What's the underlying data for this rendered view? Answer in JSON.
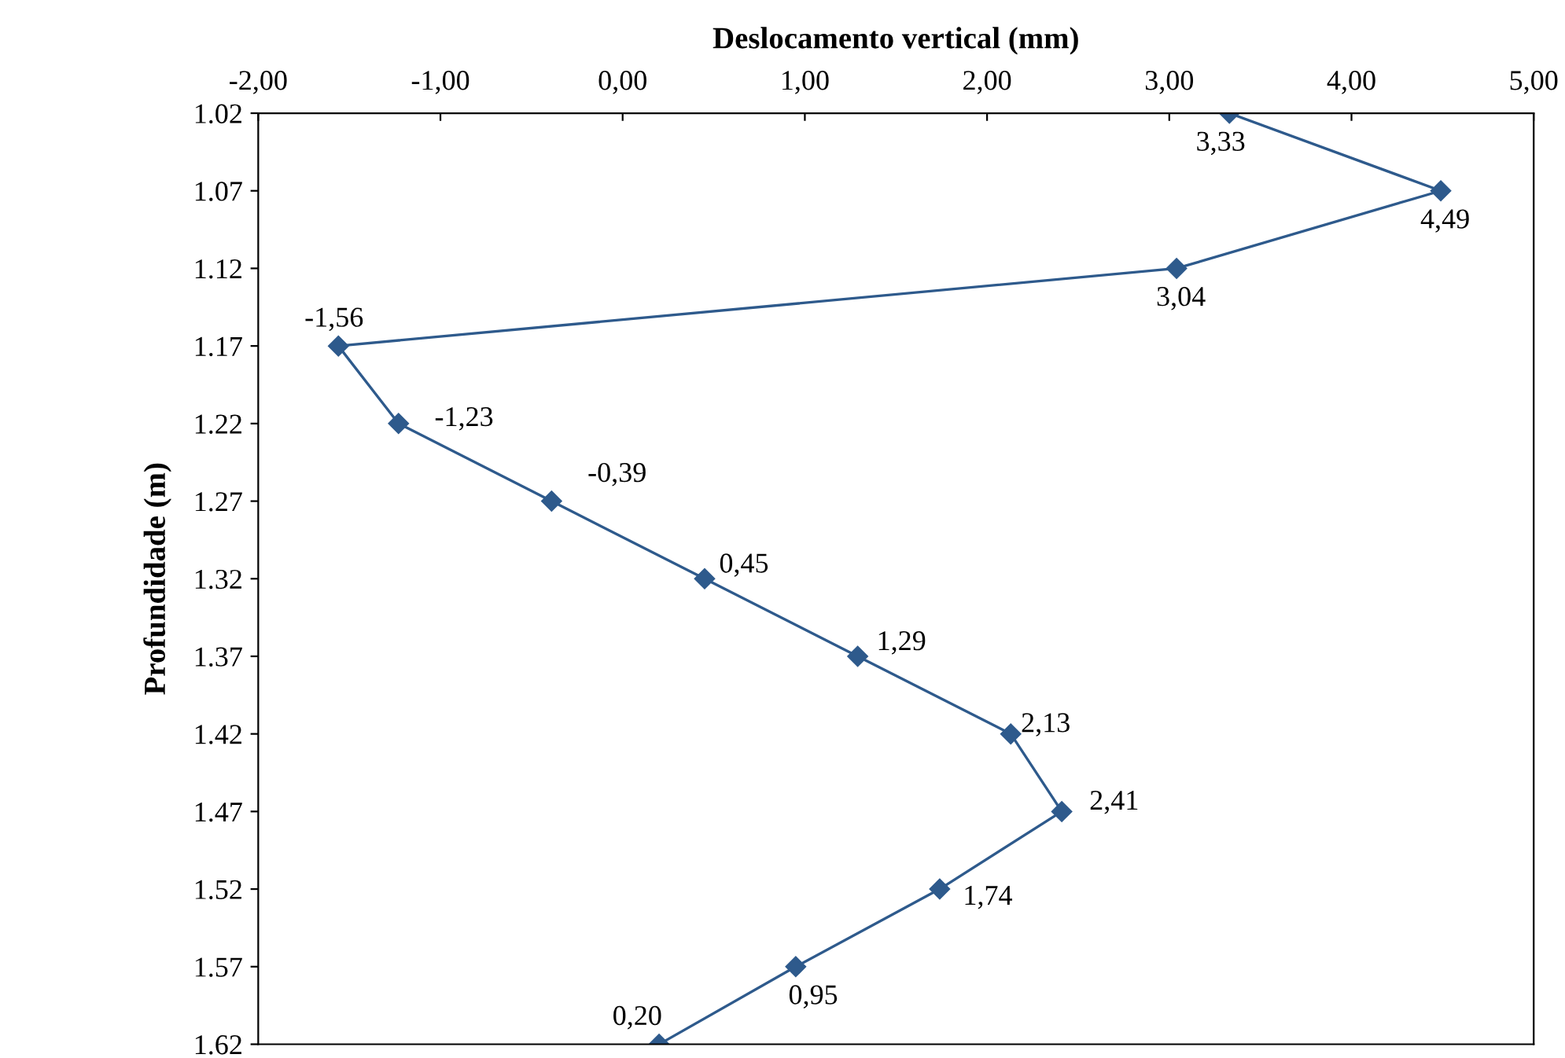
{
  "chart_data": {
    "type": "line",
    "orientation": "horizontal",
    "xlabel": "Deslocamento vertical (mm)",
    "ylabel": "Profundidade (m)",
    "xlim": [
      -2,
      5
    ],
    "xticks": [
      {
        "value": -2,
        "label": "-2,00"
      },
      {
        "value": -1,
        "label": "-1,00"
      },
      {
        "value": 0,
        "label": "0,00"
      },
      {
        "value": 1,
        "label": "1,00"
      },
      {
        "value": 2,
        "label": "2,00"
      },
      {
        "value": 3,
        "label": "3,00"
      },
      {
        "value": 4,
        "label": "4,00"
      },
      {
        "value": 5,
        "label": "5,00"
      }
    ],
    "categories": [
      "1.02",
      "1.07",
      "1.12",
      "1.17",
      "1.22",
      "1.27",
      "1.32",
      "1.37",
      "1.42",
      "1.47",
      "1.52",
      "1.57",
      "1.62"
    ],
    "series": [
      {
        "color": "#2e5a8c",
        "values": [
          3.33,
          4.49,
          3.04,
          -1.56,
          -1.23,
          -0.39,
          0.45,
          1.29,
          2.13,
          2.41,
          1.74,
          0.95,
          0.2
        ],
        "value_labels": [
          "3,33",
          "4,49",
          "3,04",
          "-1,56",
          "-1,23",
          "-0,39",
          "0,45",
          "1,29",
          "2,13",
          "2,41",
          "1,74",
          "0,95",
          "0,20"
        ]
      }
    ],
    "marker": "diamond",
    "line_style": "solid"
  }
}
